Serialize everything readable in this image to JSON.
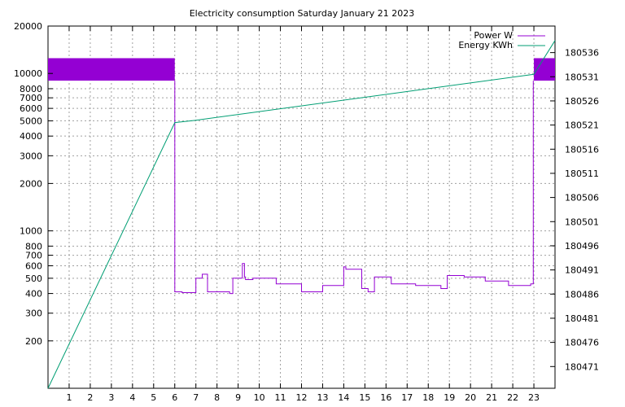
{
  "chart_data": {
    "type": "line",
    "title": "Electricity consumption Saturday January 21 2023",
    "x_ticks": [
      1,
      2,
      3,
      4,
      5,
      6,
      7,
      8,
      9,
      10,
      11,
      12,
      13,
      14,
      15,
      16,
      17,
      18,
      19,
      20,
      21,
      22,
      23
    ],
    "xlim": [
      0,
      24
    ],
    "y_left": {
      "scale": "log",
      "lim": [
        100,
        20000
      ],
      "ticks": [
        200,
        300,
        400,
        500,
        600,
        700,
        800,
        1000,
        2000,
        3000,
        4000,
        5000,
        6000,
        7000,
        8000,
        10000,
        20000
      ]
    },
    "y_right": {
      "scale": "log",
      "lim": [
        180466.5,
        180541.5
      ],
      "ticks": [
        180471,
        180476,
        180481,
        180486,
        180491,
        180496,
        180501,
        180506,
        180511,
        180516,
        180521,
        180526,
        180531,
        180536
      ]
    },
    "grid": true,
    "legend_position": "top-right",
    "series": [
      {
        "name": "Power W",
        "axis": "left",
        "color": "#9400d3",
        "band_ranges": [
          [
            0,
            6
          ],
          [
            23,
            24
          ]
        ],
        "band_range_W": [
          9000,
          12500
        ],
        "points": [
          [
            6.0,
            9000
          ],
          [
            6.0,
            410
          ],
          [
            6.35,
            410
          ],
          [
            6.35,
            405
          ],
          [
            7.0,
            405
          ],
          [
            7.0,
            500
          ],
          [
            7.3,
            500
          ],
          [
            7.3,
            530
          ],
          [
            7.55,
            530
          ],
          [
            7.55,
            410
          ],
          [
            8.3,
            410
          ],
          [
            8.6,
            410
          ],
          [
            8.6,
            400
          ],
          [
            8.75,
            400
          ],
          [
            8.75,
            500
          ],
          [
            9.2,
            500
          ],
          [
            9.2,
            620
          ],
          [
            9.3,
            620
          ],
          [
            9.3,
            510
          ],
          [
            9.35,
            510
          ],
          [
            9.35,
            490
          ],
          [
            9.7,
            490
          ],
          [
            9.7,
            500
          ],
          [
            10.8,
            500
          ],
          [
            10.8,
            460
          ],
          [
            12.0,
            460
          ],
          [
            12.0,
            410
          ],
          [
            13.0,
            410
          ],
          [
            13.0,
            450
          ],
          [
            14.0,
            450
          ],
          [
            14.0,
            590
          ],
          [
            14.1,
            590
          ],
          [
            14.1,
            570
          ],
          [
            14.85,
            570
          ],
          [
            14.85,
            430
          ],
          [
            15.15,
            430
          ],
          [
            15.15,
            410
          ],
          [
            15.45,
            410
          ],
          [
            15.45,
            510
          ],
          [
            16.25,
            510
          ],
          [
            16.25,
            460
          ],
          [
            17.4,
            460
          ],
          [
            17.4,
            450
          ],
          [
            18.6,
            450
          ],
          [
            18.6,
            430
          ],
          [
            18.9,
            430
          ],
          [
            18.9,
            520
          ],
          [
            19.7,
            520
          ],
          [
            19.7,
            510
          ],
          [
            20.7,
            510
          ],
          [
            20.7,
            480
          ],
          [
            21.8,
            480
          ],
          [
            21.8,
            450
          ],
          [
            22.85,
            450
          ],
          [
            22.85,
            460
          ],
          [
            22.97,
            460
          ],
          [
            22.97,
            9000
          ]
        ]
      },
      {
        "name": "Energy KWh",
        "axis": "right",
        "color": "#009e73",
        "points": [
          [
            0,
            180466.5
          ],
          [
            6,
            180521.5
          ],
          [
            7,
            180522
          ],
          [
            23,
            180531.5
          ],
          [
            24,
            180538.5
          ]
        ]
      }
    ]
  }
}
